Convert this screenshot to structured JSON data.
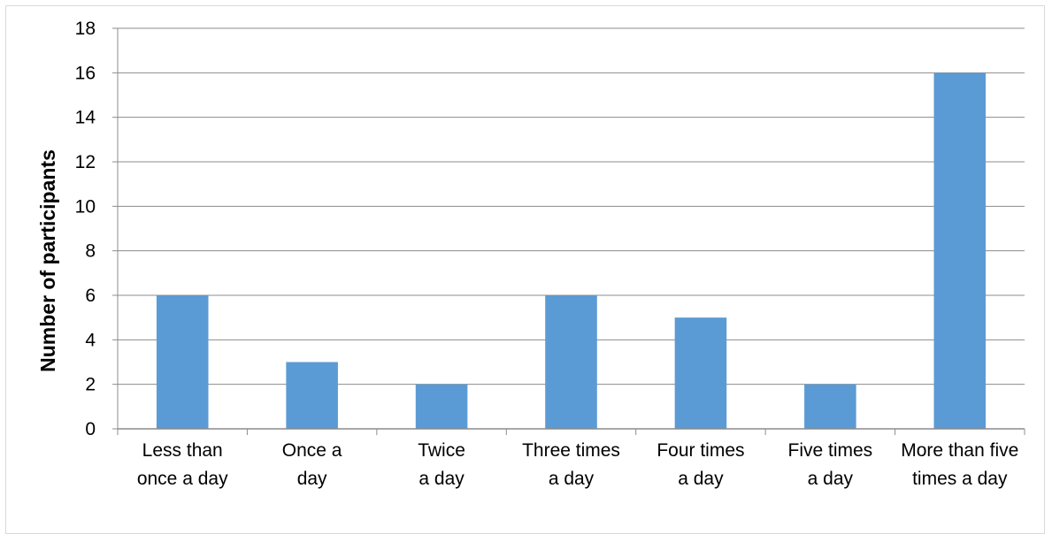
{
  "chart_data": {
    "type": "bar",
    "categories": [
      [
        "Less than",
        "once a day"
      ],
      [
        "Once a",
        "day"
      ],
      [
        "Twice",
        "a day"
      ],
      [
        "Three times",
        "a day"
      ],
      [
        "Four times",
        "a day"
      ],
      [
        "Five times",
        "a day"
      ],
      [
        "More than five",
        "times a day"
      ]
    ],
    "values": [
      6,
      3,
      2,
      6,
      5,
      2,
      16
    ],
    "title": "",
    "xlabel": "",
    "ylabel": "Number of participants",
    "ylim": [
      0,
      18
    ],
    "yticks": [
      0,
      2,
      4,
      6,
      8,
      10,
      12,
      14,
      16,
      18
    ],
    "grid": true,
    "legend": "none",
    "bar_color": "#5b9bd5",
    "grid_color": "#8c8c8c"
  }
}
